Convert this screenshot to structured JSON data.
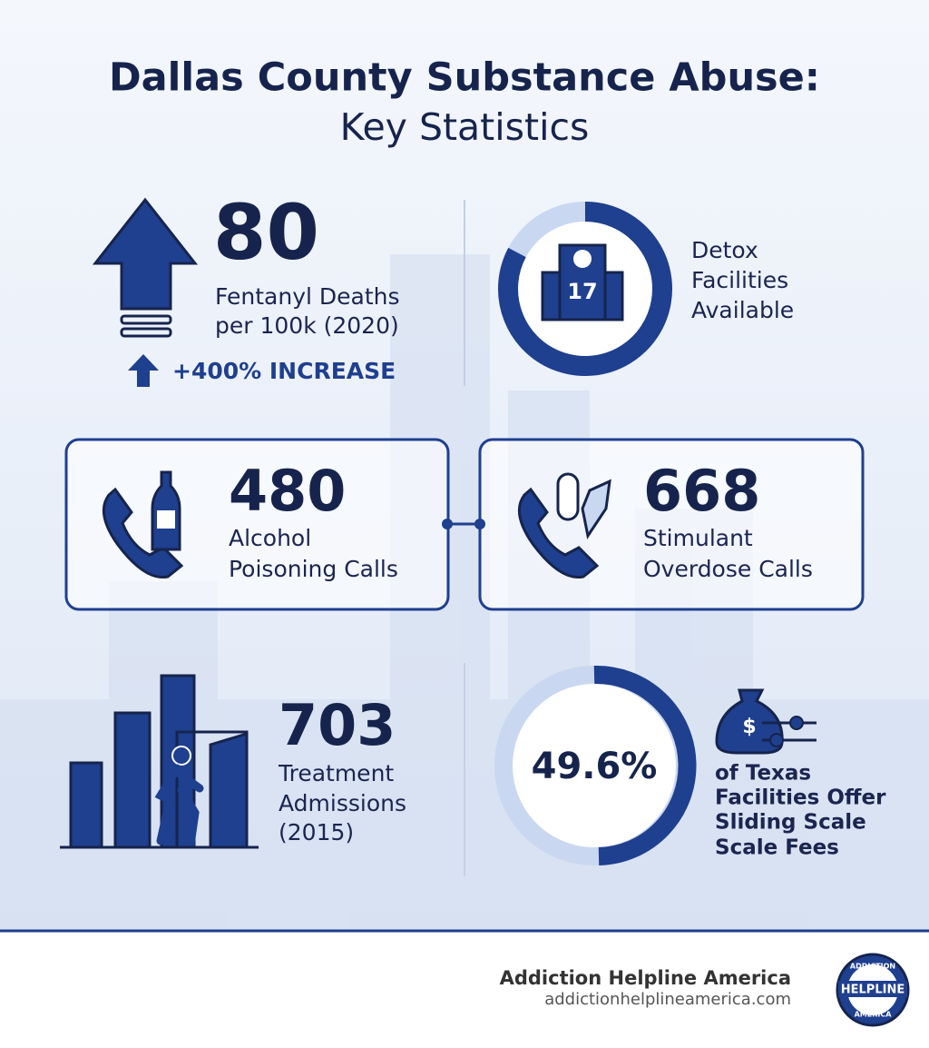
{
  "header": {
    "title": "Dallas County Substance Abuse:",
    "subtitle": "Key Statistics"
  },
  "stats": [
    {
      "value": "80",
      "label": [
        "Fentanyl Deaths",
        "per 100k (2020)"
      ],
      "note": "+400% INCREASE"
    },
    {
      "value": "17",
      "label": [
        "Detox",
        "Facilities",
        "Available"
      ]
    },
    {
      "value": "480",
      "label": [
        "Alcohol",
        "Poisoning Calls"
      ]
    },
    {
      "value": "668",
      "label": [
        "Stimulant",
        "Overdose Calls"
      ]
    },
    {
      "value": "703",
      "label": [
        "Treatment",
        "Admissions",
        "(2015)"
      ]
    },
    {
      "value": "49.6%",
      "label": [
        "of Texas",
        "Facilities Offer",
        "Sliding Scale",
        "Scale Fees"
      ]
    }
  ],
  "footer": {
    "brand": "Addiction Helpline America",
    "url": "addictionhelplineamerica.com",
    "logo": {
      "top": "ADDICTION",
      "middle": "HELPLINE",
      "bottom": "AMERICA"
    }
  }
}
